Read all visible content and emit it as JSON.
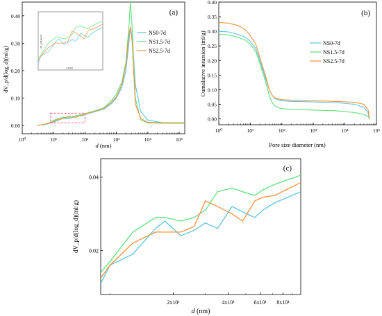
{
  "colors": {
    "NS0": "#5bc2e7",
    "NS1.5": "#5fe07a",
    "NS2.5": "#f5913a",
    "highlight": "#ff4d6d"
  },
  "chart_data": [
    {
      "panel": "(a)",
      "type": "line",
      "xscale": "log",
      "xlim": [
        1,
        150000
      ],
      "ylim": [
        -0.03,
        0.45
      ],
      "xlabel_prefix": "d",
      "xlabel_suffix": " (nm)",
      "ylabel": "dV_p/d(log_d)(ml/g)",
      "xticks": [
        {
          "v": 1,
          "label": "10⁰"
        },
        {
          "v": 10,
          "label": "10¹"
        },
        {
          "v": 100,
          "label": "10²"
        },
        {
          "v": 1000,
          "label": "10³"
        },
        {
          "v": 10000,
          "label": "10⁴"
        },
        {
          "v": 100000,
          "label": "10⁵"
        }
      ],
      "yticks": [
        "0.00",
        "0.10",
        "0.20",
        "0.30",
        "0.40"
      ],
      "legend_position": "top-right",
      "highlight_box": {
        "x": [
          8,
          100
        ],
        "y": [
          0.01,
          0.045
        ]
      },
      "inset": {
        "position": "top-left",
        "ylabel": "dV_p/d(log d)",
        "xlabel": "d (nm)"
      },
      "series": [
        {
          "name": "NS0-7d",
          "key": "NS0",
          "x": [
            3,
            5,
            8,
            12,
            20,
            30,
            50,
            80,
            120,
            200,
            400,
            700,
            1000,
            1500,
            2000,
            2500,
            2800,
            3200,
            4000,
            6000,
            10000,
            30000,
            100000,
            150000
          ],
          "y": [
            0,
            0.003,
            0.009,
            0.016,
            0.026,
            0.025,
            0.032,
            0.036,
            0.043,
            0.05,
            0.06,
            0.08,
            0.1,
            0.14,
            0.2,
            0.3,
            0.36,
            0.32,
            0.15,
            0.05,
            0.02,
            0.01,
            0.01,
            0.01
          ]
        },
        {
          "name": "NS1.5-7d",
          "key": "NS1.5",
          "x": [
            3,
            5,
            8,
            12,
            20,
            30,
            50,
            80,
            120,
            200,
            400,
            700,
            1000,
            1500,
            2000,
            2500,
            2800,
            3200,
            4000,
            6000,
            10000,
            30000,
            100000,
            150000
          ],
          "y": [
            0,
            0.004,
            0.012,
            0.023,
            0.03,
            0.028,
            0.036,
            0.04,
            0.046,
            0.053,
            0.065,
            0.09,
            0.115,
            0.16,
            0.23,
            0.36,
            0.45,
            0.35,
            0.1,
            0.02,
            0.01,
            0.008,
            0.008,
            0.008
          ]
        },
        {
          "name": "NS2.5-7d",
          "key": "NS2.5",
          "x": [
            3,
            5,
            8,
            12,
            20,
            30,
            50,
            80,
            120,
            200,
            400,
            700,
            1000,
            1500,
            2000,
            2500,
            2800,
            3200,
            4000,
            6000,
            10000,
            30000,
            100000,
            150000
          ],
          "y": [
            0,
            0.004,
            0.01,
            0.02,
            0.025,
            0.034,
            0.03,
            0.038,
            0.044,
            0.051,
            0.062,
            0.085,
            0.105,
            0.15,
            0.22,
            0.33,
            0.36,
            0.3,
            0.08,
            0.025,
            0.012,
            0.01,
            0.01,
            0.01
          ]
        }
      ]
    },
    {
      "panel": "(b)",
      "type": "line",
      "xscale": "log",
      "xlim": [
        1,
        100000
      ],
      "ylim": [
        -0.02,
        0.4
      ],
      "xlabel": "Pore size diameter (nm)",
      "ylabel": "Cumulative intursion (ml/g)",
      "xticks": [
        {
          "v": 1,
          "label": "10⁰"
        },
        {
          "v": 10,
          "label": "10¹"
        },
        {
          "v": 100,
          "label": "10²"
        },
        {
          "v": 1000,
          "label": "10³"
        },
        {
          "v": 10000,
          "label": "10⁴"
        },
        {
          "v": 100000,
          "label": "10⁵"
        }
      ],
      "yticks": [
        "0.00",
        "0.05",
        "0.10",
        "0.15",
        "0.20",
        "0.25",
        "0.30",
        "0.35",
        "0.40"
      ],
      "legend_position": "center-right",
      "series": [
        {
          "name": "NS0-7d",
          "key": "NS0",
          "x": [
            1,
            2,
            4,
            7,
            10,
            15,
            20,
            30,
            40,
            50,
            60,
            80,
            100,
            200,
            1000,
            5000,
            20000,
            40000,
            55000,
            60000
          ],
          "y": [
            0.3,
            0.298,
            0.29,
            0.28,
            0.265,
            0.24,
            0.2,
            0.14,
            0.1,
            0.08,
            0.07,
            0.065,
            0.062,
            0.06,
            0.058,
            0.056,
            0.05,
            0.04,
            0.02,
            0
          ]
        },
        {
          "name": "NS1.5-7d",
          "key": "NS1.5",
          "x": [
            1,
            2,
            4,
            7,
            10,
            15,
            20,
            30,
            40,
            50,
            60,
            80,
            100,
            200,
            1000,
            5000,
            20000,
            40000,
            55000,
            60000
          ],
          "y": [
            0.29,
            0.288,
            0.28,
            0.27,
            0.255,
            0.23,
            0.19,
            0.13,
            0.08,
            0.055,
            0.045,
            0.038,
            0.035,
            0.033,
            0.03,
            0.028,
            0.022,
            0.015,
            0.008,
            0
          ]
        },
        {
          "name": "NS2.5-7d",
          "key": "NS2.5",
          "x": [
            1,
            2,
            4,
            7,
            10,
            15,
            20,
            30,
            40,
            50,
            60,
            80,
            100,
            200,
            1000,
            5000,
            20000,
            40000,
            55000,
            60000
          ],
          "y": [
            0.33,
            0.328,
            0.32,
            0.305,
            0.285,
            0.255,
            0.21,
            0.15,
            0.1,
            0.08,
            0.072,
            0.068,
            0.066,
            0.064,
            0.062,
            0.06,
            0.057,
            0.05,
            0.03,
            0
          ]
        }
      ]
    },
    {
      "panel": "(c)",
      "type": "line",
      "xscale": "log",
      "xlim": [
        8,
        100
      ],
      "ylim": [
        0.008,
        0.045
      ],
      "xlabel_prefix": "d",
      "xlabel_suffix": " (nm)",
      "ylabel": "dV_p/d(log_d)(ml/g)",
      "xticks": [
        {
          "v": 20,
          "label": "2x10¹"
        },
        {
          "v": 40,
          "label": "4x10¹"
        },
        {
          "v": 60,
          "label": "6x10¹"
        },
        {
          "v": 80,
          "label": "8x10¹"
        }
      ],
      "yticks": [
        "0.02",
        "0.04"
      ],
      "series": [
        {
          "name": "NS0-7d",
          "key": "NS0",
          "x": [
            8,
            9,
            12,
            16,
            18,
            22,
            26,
            30,
            35,
            42,
            48,
            56,
            62,
            72,
            100
          ],
          "y": [
            0.011,
            0.016,
            0.019,
            0.026,
            0.028,
            0.024,
            0.0255,
            0.0275,
            0.026,
            0.032,
            0.0305,
            0.029,
            0.031,
            0.033,
            0.036
          ]
        },
        {
          "name": "NS1.5-7d",
          "key": "NS1.5",
          "x": [
            8,
            9,
            12,
            16,
            18,
            22,
            26,
            30,
            35,
            42,
            48,
            56,
            62,
            72,
            100
          ],
          "y": [
            0.014,
            0.017,
            0.025,
            0.029,
            0.029,
            0.028,
            0.029,
            0.031,
            0.036,
            0.037,
            0.036,
            0.035,
            0.0365,
            0.038,
            0.0405
          ]
        },
        {
          "name": "NS2.5-7d",
          "key": "NS2.5",
          "x": [
            8,
            9,
            12,
            16,
            18,
            22,
            26,
            30,
            35,
            42,
            48,
            56,
            62,
            72,
            100
          ],
          "y": [
            0.0125,
            0.016,
            0.022,
            0.025,
            0.025,
            0.025,
            0.0265,
            0.0335,
            0.032,
            0.03,
            0.028,
            0.0335,
            0.0345,
            0.035,
            0.0385
          ]
        }
      ]
    }
  ]
}
